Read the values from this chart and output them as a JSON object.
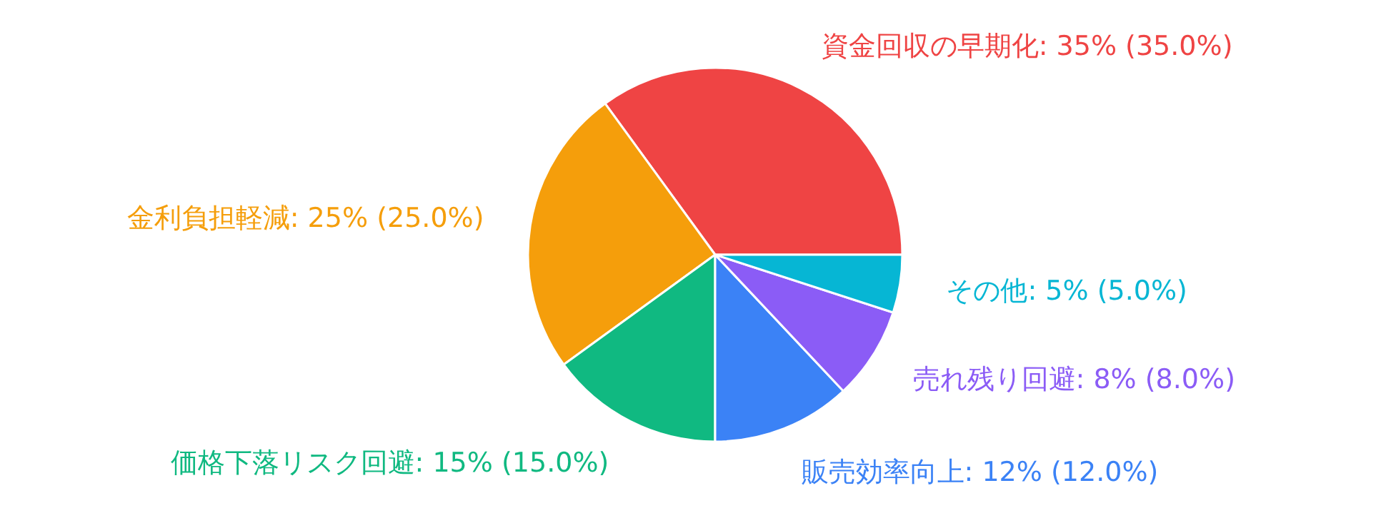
{
  "chart_data": {
    "type": "pie",
    "categories": [
      "資金回収の早期化",
      "金利負担軽減",
      "価格下落リスク回避",
      "販売効率向上",
      "売れ残り回避",
      "その他"
    ],
    "values": [
      35,
      25,
      15,
      12,
      8,
      5
    ],
    "value_labels": [
      "35% (35.0%)",
      "25% (25.0%)",
      "15% (15.0%)",
      "12% (12.0%)",
      "8% (8.0%)",
      "5% (5.0%)"
    ],
    "colors": [
      "#ef4444",
      "#f59e0b",
      "#10b981",
      "#3b82f6",
      "#8b5cf6",
      "#06b6d4"
    ],
    "legend": false
  }
}
